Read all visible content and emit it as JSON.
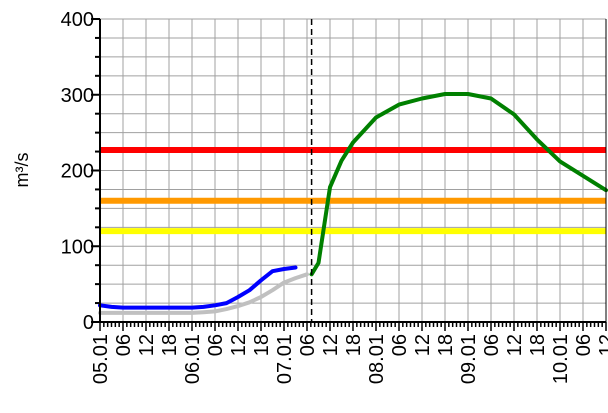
{
  "chart_data": {
    "type": "line",
    "ylabel": "m³/s",
    "ylim": [
      0,
      400
    ],
    "y_ticks": [
      "0",
      "100",
      "200",
      "300",
      "400"
    ],
    "grid": true,
    "x_ticks": [
      "05.01",
      "06",
      "12",
      "18",
      "06.01",
      "06",
      "12",
      "18",
      "07.01",
      "06",
      "12",
      "18",
      "08.01",
      "06",
      "12",
      "18",
      "09.01",
      "06",
      "12",
      "18",
      "10.01",
      "06",
      "12"
    ],
    "forecast_divider_x": 9.2,
    "thresholds": [
      {
        "value": 227,
        "color": "#ff0000"
      },
      {
        "value": 160,
        "color": "#ff9900"
      },
      {
        "value": 120,
        "color": "#ffff00"
      }
    ],
    "series": [
      {
        "color": "#c0c0c0",
        "x": [
          0,
          1,
          2,
          3,
          4,
          4.5,
          5,
          5.5,
          6,
          6.5,
          7,
          7.5,
          8,
          8.5,
          9
        ],
        "y": [
          12,
          12,
          12,
          12,
          12,
          13,
          14,
          17,
          21,
          26,
          33,
          42,
          52,
          58,
          63
        ]
      },
      {
        "color": "#0000ff",
        "x": [
          0,
          0.5,
          1,
          2,
          3,
          4,
          4.5,
          5,
          5.5,
          6,
          6.5,
          7,
          7.5,
          8,
          8.5
        ],
        "y": [
          22,
          20,
          19,
          19,
          19,
          19,
          20,
          22,
          25,
          33,
          42,
          55,
          67,
          70,
          72
        ]
      },
      {
        "color": "#008000",
        "x": [
          9.2,
          9.5,
          10,
          10.5,
          11,
          12,
          13,
          14,
          15,
          16,
          17,
          18,
          19,
          20,
          21,
          22
        ],
        "y": [
          63,
          78,
          178,
          213,
          237,
          270,
          287,
          295,
          301,
          301,
          295,
          274,
          241,
          212,
          193,
          174
        ]
      }
    ]
  }
}
